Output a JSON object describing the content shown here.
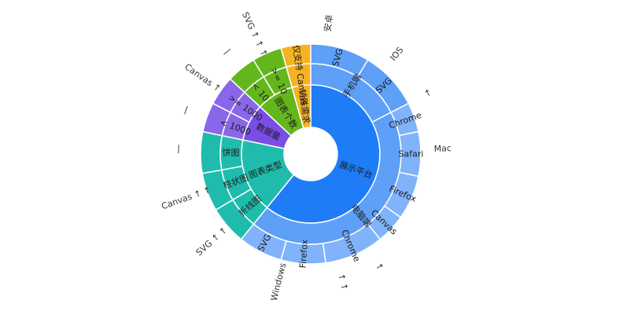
{
  "chart_data": {
    "type": "sunburst",
    "title": "",
    "palette": {
      "blue": "#1e7cf7",
      "blue_light": "#5e9ff8",
      "blue_lighter": "#80b3f9",
      "green": "#63b71c",
      "purple": "#7a4de6",
      "purple_light": "#8a67e8",
      "teal": "#1fbcad",
      "yellow": "#f5b324"
    },
    "rings": [
      [
        {
          "label": "展示平台",
          "value": 14,
          "color": "#1e7cf7"
        },
        {
          "label": "图表类型",
          "value": 4,
          "color": "#1fbcad"
        },
        {
          "label": "数据量",
          "value": 2,
          "color": "#7a4de6"
        },
        {
          "label": "图表个数",
          "value": 2,
          "color": "#63b71c"
        },
        {
          "label": "特殊需求",
          "value": 1,
          "color": "#f5b324"
        }
      ],
      [
        {
          "label": "手机端",
          "value": 4,
          "color": "#5e9ff8"
        },
        {
          "label": "电脑端",
          "value": 10,
          "color": "#5e9ff8"
        },
        {
          "label": "折线图",
          "value": 1.3,
          "color": "#1fbcad"
        },
        {
          "label": "柱状图",
          "value": 1.3,
          "color": "#1fbcad"
        },
        {
          "label": "饼图",
          "value": 1.4,
          "color": "#1fbcad"
        },
        {
          "label": "< 1000",
          "value": 1,
          "color": "#8a67e8"
        },
        {
          "label": ">= 1000",
          "value": 1,
          "color": "#8a67e8"
        },
        {
          "label": "< 10",
          "value": 1,
          "color": "#63b71c"
        },
        {
          "label": ">= 10",
          "value": 1,
          "color": "#63b71c"
        },
        {
          "label": "仅支持 Canvas",
          "value": 1,
          "color": "#f5b324"
        }
      ],
      [
        {
          "label": "SVG",
          "value": 2,
          "color": "#5e9ff8"
        },
        {
          "label": "SVG",
          "value": 2,
          "color": "#5e9ff8"
        },
        {
          "label": "Chrome",
          "value": 1,
          "color": "#80b3f9"
        },
        {
          "label": "Safari",
          "value": 1.5,
          "color": "#80b3f9"
        },
        {
          "label": "Firefox",
          "value": 1.5,
          "color": "#80b3f9"
        },
        {
          "label": "Canvas",
          "value": 1,
          "color": "#80b3f9"
        },
        {
          "label": "Chrome",
          "value": 2,
          "color": "#80b3f9"
        },
        {
          "label": "Firefox",
          "value": 1.5,
          "color": "#80b3f9"
        },
        {
          "label": "SVG",
          "value": 1.5,
          "color": "#80b3f9"
        },
        {
          "label": "",
          "value": 1.3,
          "color": "#1fbcad"
        },
        {
          "label": "",
          "value": 1.3,
          "color": "#1fbcad"
        },
        {
          "label": "",
          "value": 1.4,
          "color": "#1fbcad"
        },
        {
          "label": "",
          "value": 1,
          "color": "#8a67e8"
        },
        {
          "label": "",
          "value": 1,
          "color": "#8a67e8"
        },
        {
          "label": "",
          "value": 1,
          "color": "#63b71c"
        },
        {
          "label": "",
          "value": 1,
          "color": "#63b71c"
        },
        {
          "label": "",
          "value": 1,
          "color": "#f5b324"
        }
      ]
    ],
    "outer_labels": [
      {
        "text": "安卓",
        "at": 0.5
      },
      {
        "text": "IOS",
        "at": 2.6
      },
      {
        "text": "↑",
        "at": 4.0
      },
      {
        "text": "Mac",
        "at": 5.6
      },
      {
        "text": "↑",
        "at": 9.5
      },
      {
        "text": "↑ ↑",
        "at": 10.6
      },
      {
        "text": "Windows",
        "at": 12.4
      },
      {
        "text": "SVG ↑ ↑",
        "at": 14.6
      },
      {
        "text": "Canvas ↑ ↑",
        "at": 16.0
      },
      {
        "text": "|",
        "at": 17.4
      },
      {
        "text": "|",
        "at": 18.5
      },
      {
        "text": "Canvas ↑",
        "at": 19.5
      },
      {
        "text": "|",
        "at": 20.5
      },
      {
        "text": "SVG ↑ ↑ ↑",
        "at": 21.4
      }
    ]
  }
}
